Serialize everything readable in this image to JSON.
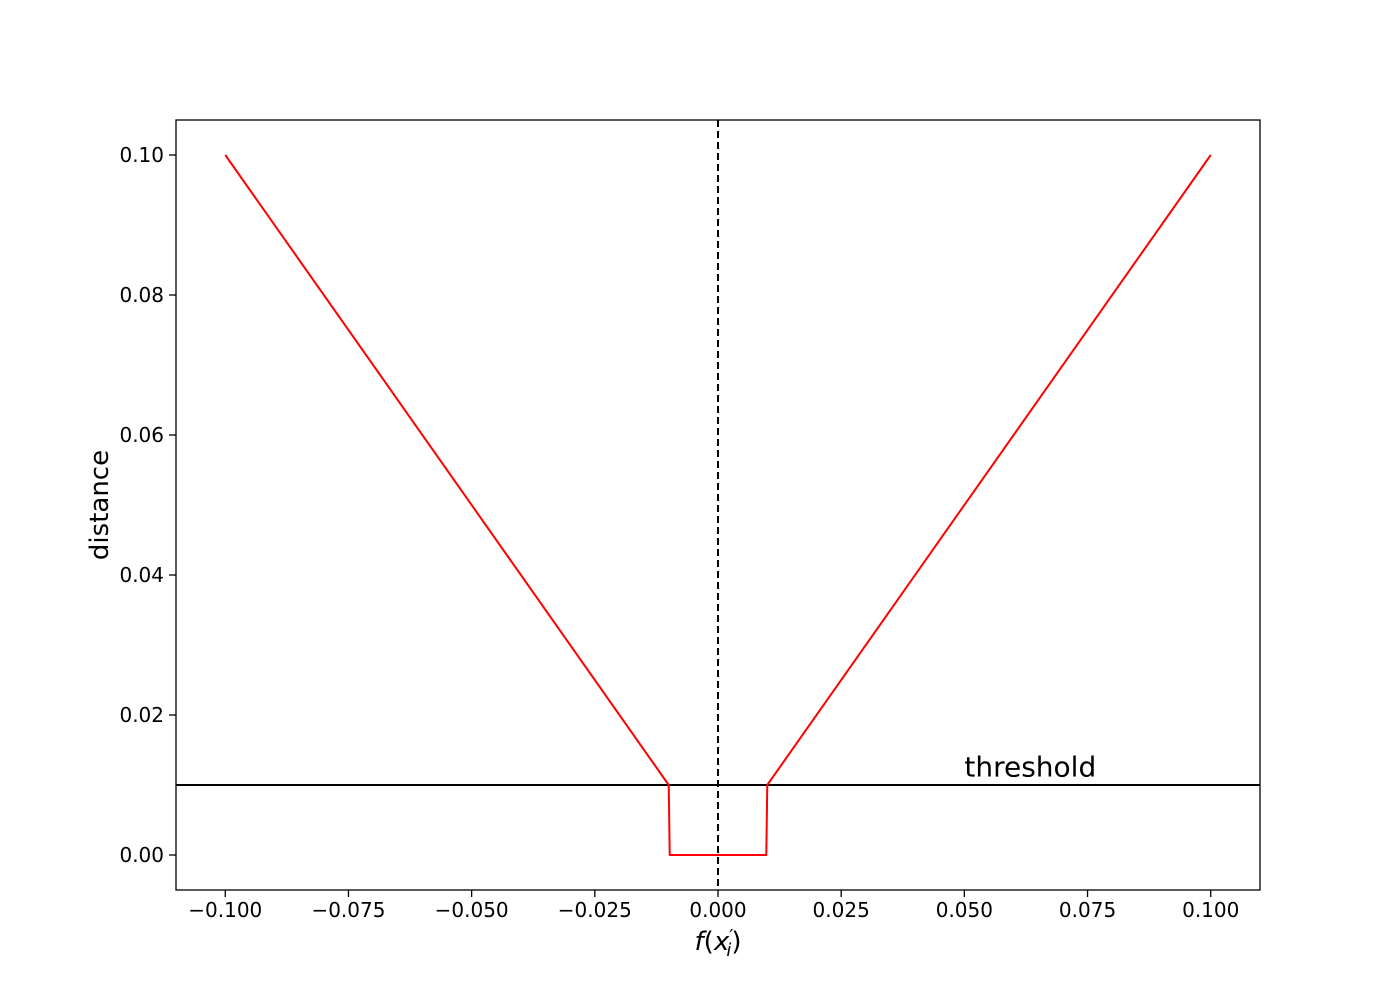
{
  "chart_data": {
    "type": "line",
    "title": "",
    "xlabel": "f(x′ᵢ)",
    "ylabel": "distance",
    "xlim": [
      -0.11,
      0.11
    ],
    "ylim": [
      -0.005,
      0.105
    ],
    "grid": false,
    "x_ticks": [
      -0.1,
      -0.075,
      -0.05,
      -0.025,
      0.0,
      0.025,
      0.05,
      0.075,
      0.1
    ],
    "x_tick_labels": [
      "−0.100",
      "−0.075",
      "−0.050",
      "−0.025",
      "0.000",
      "0.025",
      "0.050",
      "0.075",
      "0.100"
    ],
    "y_ticks": [
      0.0,
      0.02,
      0.04,
      0.06,
      0.08,
      0.1
    ],
    "y_tick_labels": [
      "0.00",
      "0.02",
      "0.04",
      "0.06",
      "0.08",
      "0.10"
    ],
    "series": [
      {
        "color": "#ff0000",
        "x": [
          -0.1,
          -0.01,
          -0.0098,
          0.0098,
          0.01,
          0.1
        ],
        "y": [
          0.1,
          0.01,
          0.0,
          0.0,
          0.01,
          0.1
        ]
      }
    ],
    "hlines": [
      {
        "y": 0.01,
        "color": "#000000",
        "style": "solid",
        "label": "threshold"
      }
    ],
    "vlines": [
      {
        "x": 0.0,
        "color": "#000000",
        "style": "dashed"
      }
    ],
    "annotations": [
      {
        "text": "threshold",
        "x": 0.05,
        "y": 0.0112
      }
    ]
  }
}
